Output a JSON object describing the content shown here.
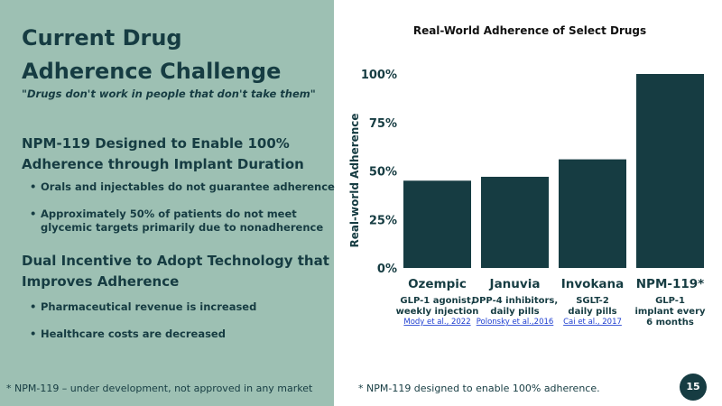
{
  "slide": {
    "title_line1": "Current Drug",
    "title_line2": "Adherence Challenge",
    "quote": "\"Drugs don't work in people that don't take them\"",
    "section1": {
      "heading_line1": "NPM-119 Designed to Enable 100%",
      "heading_line2": "Adherence through Implant Duration",
      "bullets": [
        "Orals and injectables do not guarantee adherence",
        "Approximately 50% of patients do not meet glycemic targets primarily due to nonadherence"
      ]
    },
    "section2": {
      "heading_line1": "Dual Incentive to Adopt Technology that",
      "heading_line2": "Improves Adherence",
      "bullets": [
        "Pharmaceutical revenue is increased",
        "Healthcare costs are decreased"
      ]
    },
    "footnote_left": "* NPM-119 – under development, not approved in any market",
    "footnote_right": "* NPM-119 designed to enable 100% adherence.",
    "page_number": "15"
  },
  "chart_data": {
    "type": "bar",
    "title": "Real-World Adherence of Select Drugs",
    "ylabel": "Real-world Adherence",
    "xlabel": "",
    "ylim": [
      0,
      100
    ],
    "yticks": [
      0,
      25,
      50,
      75,
      100
    ],
    "ytick_labels": [
      "0%",
      "25%",
      "50%",
      "75%",
      "100%"
    ],
    "grid": false,
    "bar_color": "#163c42",
    "categories": [
      "Ozempic",
      "Januvia",
      "Invokana",
      "NPM-119*"
    ],
    "values": [
      45,
      47,
      56,
      100
    ],
    "descriptions": [
      [
        "GLP-1 agonist,",
        "weekly injection"
      ],
      [
        "DPP-4 inhibitors,",
        "daily pills"
      ],
      [
        "SGLT-2",
        "daily pills"
      ],
      [
        "GLP-1",
        "implant every",
        "6 months"
      ]
    ],
    "references": [
      "Mody et al., 2022",
      "Polonsky et al.,2016",
      "Cai et al., 2017",
      ""
    ]
  }
}
